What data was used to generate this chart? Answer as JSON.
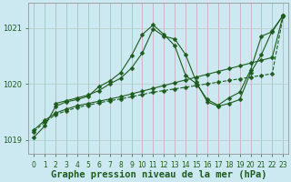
{
  "xlabel": "Graphe pression niveau de la mer (hPa)",
  "bg_color": "#cce8f0",
  "grid_color": "#aad4e0",
  "line_color": "#1e5c1e",
  "xlim": [
    -0.5,
    23.5
  ],
  "ylim": [
    1018.75,
    1021.45
  ],
  "yticks": [
    1019,
    1020,
    1021
  ],
  "xticks": [
    0,
    1,
    2,
    3,
    4,
    5,
    6,
    7,
    8,
    9,
    10,
    11,
    12,
    13,
    14,
    15,
    16,
    17,
    18,
    19,
    20,
    21,
    22,
    23
  ],
  "lines": [
    {
      "x": [
        0,
        1,
        2,
        3,
        4,
        5,
        6,
        7,
        8,
        9,
        10,
        11,
        12,
        13,
        14,
        15,
        16,
        17,
        18,
        19,
        20,
        21,
        22,
        23
      ],
      "y": [
        1019.15,
        1019.32,
        1019.45,
        1019.52,
        1019.58,
        1019.62,
        1019.66,
        1019.7,
        1019.73,
        1019.77,
        1019.81,
        1019.85,
        1019.88,
        1019.91,
        1019.94,
        1019.97,
        1020.0,
        1020.03,
        1020.06,
        1020.09,
        1020.12,
        1020.15,
        1020.18,
        1021.2
      ],
      "style": "--",
      "marker": "D",
      "markersize": 2.5,
      "linewidth": 0.8
    },
    {
      "x": [
        0,
        1,
        2,
        3,
        4,
        5,
        6,
        7,
        8,
        9,
        10,
        11,
        12,
        13,
        14,
        15,
        16,
        17,
        18,
        19,
        20,
        21,
        22,
        23
      ],
      "y": [
        1019.18,
        1019.35,
        1019.48,
        1019.55,
        1019.61,
        1019.65,
        1019.69,
        1019.73,
        1019.77,
        1019.82,
        1019.87,
        1019.92,
        1019.97,
        1020.02,
        1020.07,
        1020.12,
        1020.17,
        1020.22,
        1020.27,
        1020.32,
        1020.37,
        1020.42,
        1020.47,
        1021.22
      ],
      "style": "-",
      "marker": "D",
      "markersize": 2.5,
      "linewidth": 0.8
    },
    {
      "x": [
        0,
        1,
        2,
        3,
        4,
        5,
        6,
        7,
        8,
        9,
        10,
        11,
        12,
        13,
        14,
        15,
        16,
        17,
        18,
        19,
        20,
        21,
        22,
        23
      ],
      "y": [
        1019.05,
        1019.25,
        1019.6,
        1019.68,
        1019.72,
        1019.78,
        1019.95,
        1020.05,
        1020.2,
        1020.5,
        1020.88,
        1021.05,
        1020.88,
        1020.68,
        1020.15,
        1020.0,
        1019.72,
        1019.62,
        1019.75,
        1019.85,
        1020.25,
        1020.85,
        1020.93,
        1021.22
      ],
      "style": "-",
      "marker": "D",
      "markersize": 2.5,
      "linewidth": 0.8
    },
    {
      "x": [
        2,
        3,
        4,
        5,
        6,
        7,
        8,
        9,
        10,
        11,
        12,
        13,
        14,
        15,
        16,
        17,
        18,
        19,
        20,
        21,
        22,
        23
      ],
      "y": [
        1019.65,
        1019.7,
        1019.75,
        1019.8,
        1019.88,
        1020.0,
        1020.1,
        1020.28,
        1020.55,
        1020.98,
        1020.85,
        1020.8,
        1020.52,
        1020.03,
        1019.68,
        1019.6,
        1019.65,
        1019.72,
        1020.2,
        1020.52,
        1020.95,
        1021.22
      ],
      "style": "-",
      "marker": "D",
      "markersize": 2.5,
      "linewidth": 0.8
    }
  ],
  "xlabel_fontsize": 7.5,
  "tick_fontsize": 6.0,
  "xtick_fontsize": 5.5
}
